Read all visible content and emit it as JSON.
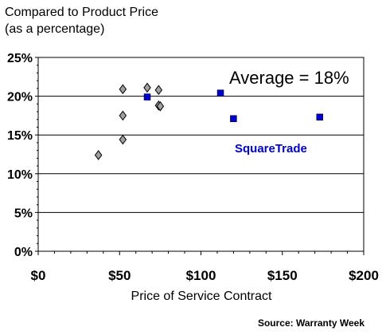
{
  "chart_data": {
    "type": "scatter",
    "ylabel_lines": [
      "Compared to Product Price",
      "(as a percentage)"
    ],
    "xlabel": "Price of Service Contract",
    "source": "Source: Warranty Week",
    "annotation": "Average = 18%",
    "x_ticks": [
      "$0",
      "$50",
      "$100",
      "$150",
      "$200"
    ],
    "y_ticks": [
      "0%",
      "5%",
      "10%",
      "15%",
      "20%",
      "25%"
    ],
    "xlim": [
      0,
      200
    ],
    "ylim": [
      0,
      25
    ],
    "grid": "horizontal",
    "series": [
      {
        "marker": "diamond",
        "color": "#a0a0a0",
        "points": [
          {
            "x": 37,
            "y": 12.4
          },
          {
            "x": 52,
            "y": 20.9
          },
          {
            "x": 52,
            "y": 17.5
          },
          {
            "x": 52,
            "y": 14.4
          },
          {
            "x": 67,
            "y": 21.1
          },
          {
            "x": 74,
            "y": 20.8
          },
          {
            "x": 74,
            "y": 18.8
          },
          {
            "x": 75,
            "y": 18.7
          }
        ]
      },
      {
        "name": "SquareTrade",
        "marker": "square",
        "color": "#0000cc",
        "points": [
          {
            "x": 67,
            "y": 19.9
          },
          {
            "x": 112,
            "y": 20.4
          },
          {
            "x": 120,
            "y": 17.1
          },
          {
            "x": 173,
            "y": 17.3
          }
        ]
      }
    ]
  }
}
